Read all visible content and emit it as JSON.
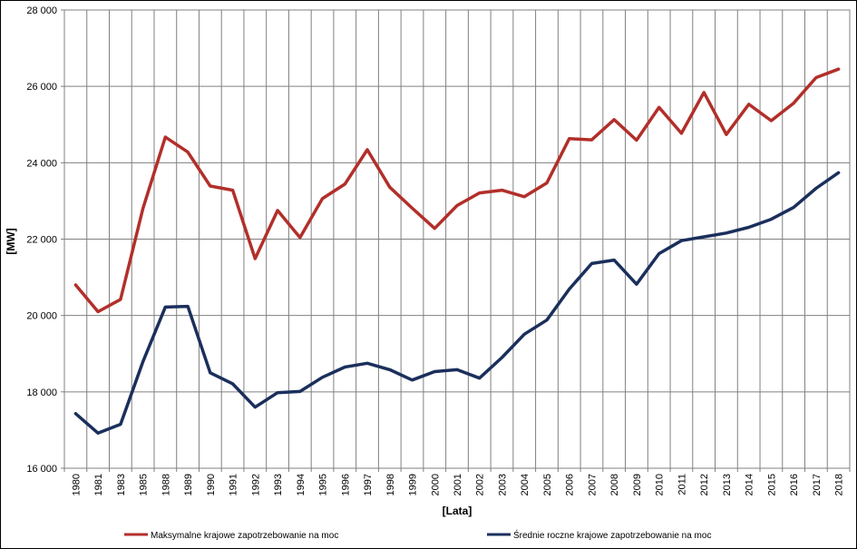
{
  "chart_data": {
    "type": "line",
    "xlabel": "[Lata]",
    "ylabel": "[MW]",
    "ylim": [
      16000,
      28000
    ],
    "yticks": [
      16000,
      18000,
      20000,
      22000,
      24000,
      26000,
      28000
    ],
    "ytick_labels": [
      "16 000",
      "18 000",
      "20 000",
      "22 000",
      "24 000",
      "26 000",
      "28 000"
    ],
    "grid": true,
    "legend_position": "bottom",
    "categories": [
      "1980",
      "1981",
      "1983",
      "1985",
      "1988",
      "1989",
      "1990",
      "1991",
      "1992",
      "1993",
      "1994",
      "1995",
      "1996",
      "1997",
      "1998",
      "1999",
      "2000",
      "2001",
      "2002",
      "2003",
      "2004",
      "2005",
      "2006",
      "2007",
      "2008",
      "2009",
      "2010",
      "2011",
      "2012",
      "2013",
      "2014",
      "2015",
      "2016",
      "2017",
      "2018"
    ],
    "series": [
      {
        "name": "Maksymalne krajowe zapotrzebowanie na moc",
        "color": "#b22f2a",
        "values": [
          20800,
          20100,
          20420,
          22800,
          24670,
          24280,
          23390,
          23280,
          21490,
          22750,
          22040,
          23060,
          23440,
          24340,
          23360,
          22810,
          22280,
          22880,
          23210,
          23280,
          23110,
          23470,
          24630,
          24600,
          25130,
          24590,
          25450,
          24770,
          25840,
          24740,
          25530,
          25100,
          25560,
          26230,
          26450
        ]
      },
      {
        "name": "Średnie roczne krajowe zapotrzebowanie na moc",
        "color": "#1b2f5c",
        "values": [
          17430,
          16920,
          17150,
          18790,
          20220,
          20240,
          18500,
          18210,
          17600,
          17980,
          18010,
          18380,
          18650,
          18750,
          18580,
          18310,
          18530,
          18580,
          18360,
          18900,
          19510,
          19880,
          20690,
          21360,
          21450,
          20820,
          21620,
          21960,
          22060,
          22160,
          22310,
          22520,
          22830,
          23330,
          23740
        ]
      }
    ]
  }
}
